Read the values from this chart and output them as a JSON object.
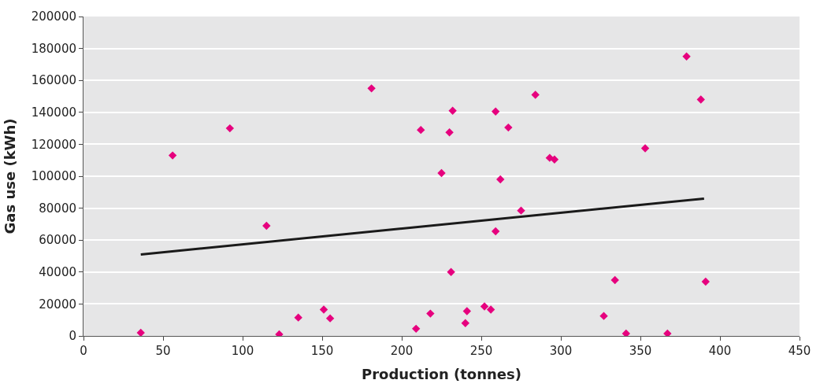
{
  "chart_data": {
    "type": "scatter",
    "xlabel": "Production (tonnes)",
    "ylabel": "Gas use (kWh)",
    "xlim": [
      0,
      450
    ],
    "xticks": [
      0,
      50,
      100,
      150,
      200,
      250,
      300,
      350,
      400,
      450
    ],
    "ylim": [
      0,
      200000
    ],
    "yticks": [
      0,
      20000,
      40000,
      60000,
      80000,
      100000,
      120000,
      140000,
      160000,
      180000,
      200000
    ],
    "grid": "y",
    "legend": false,
    "marker": "diamond",
    "series": [
      {
        "type": "scatter",
        "color": "#e6007e",
        "x": [
          36,
          56,
          92,
          115,
          123,
          135,
          151,
          155,
          181,
          209,
          212,
          218,
          225,
          230,
          231,
          232,
          240,
          241,
          252,
          256,
          259,
          259,
          262,
          267,
          275,
          284,
          293,
          296,
          327,
          334,
          341,
          353,
          367,
          379,
          388,
          391
        ],
        "values": [
          2000,
          113000,
          130000,
          69000,
          1000,
          11500,
          16500,
          11000,
          155000,
          4500,
          129000,
          14000,
          102000,
          127500,
          40000,
          141000,
          8000,
          15500,
          18500,
          16500,
          140500,
          65500,
          98000,
          130500,
          78500,
          151000,
          111500,
          110500,
          12500,
          35000,
          1500,
          117500,
          1500,
          175000,
          148000,
          34000
        ]
      },
      {
        "type": "line",
        "color": "#1a1a1a",
        "marker": "none",
        "line_style": "solid",
        "x": [
          36,
          390
        ],
        "values": [
          51000,
          86000
        ]
      }
    ]
  }
}
